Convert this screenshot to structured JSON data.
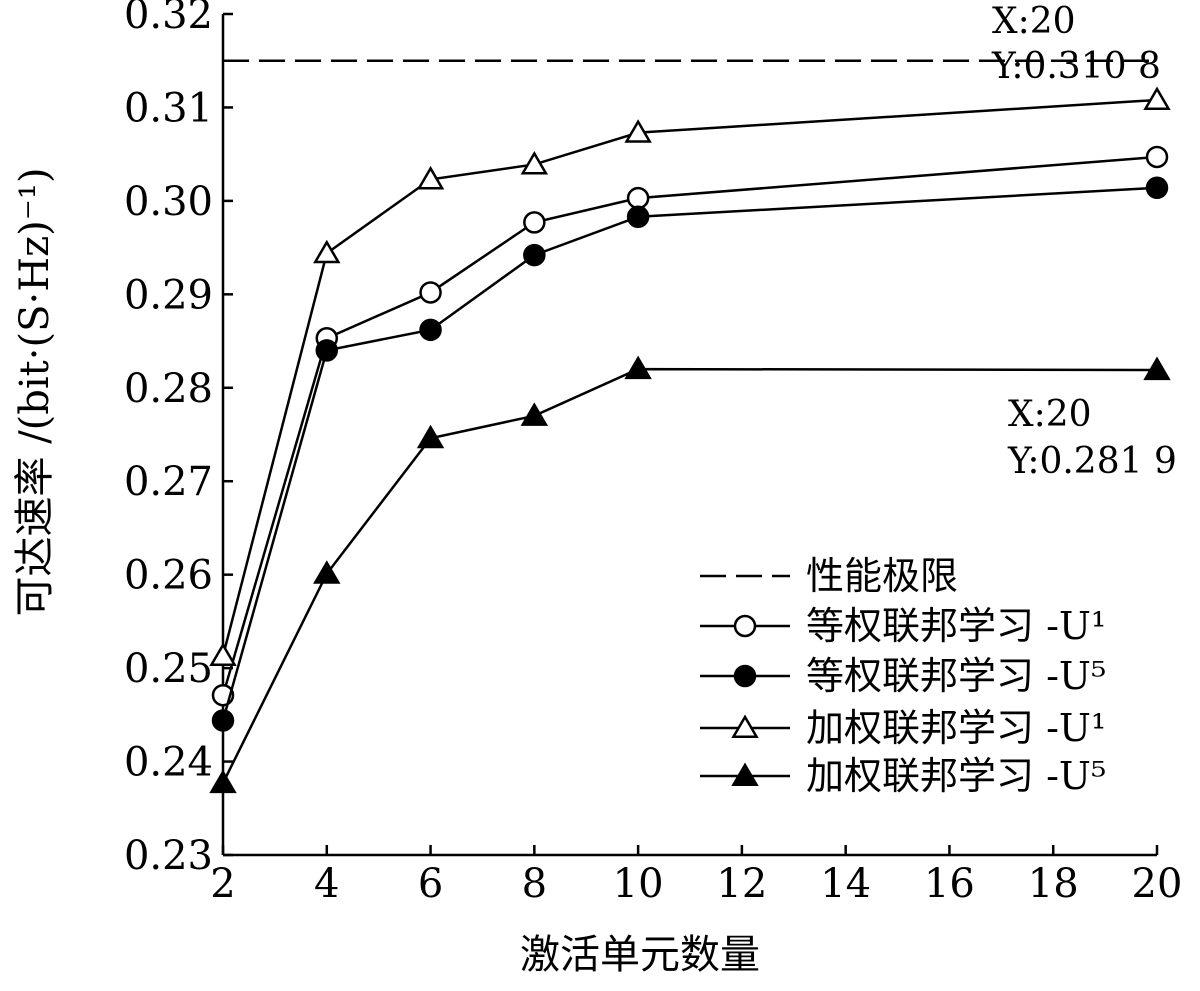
{
  "chart_data": {
    "type": "line",
    "xlabel": "激活单元数量",
    "ylabel": "可达速率 /(bit·(S·Hz)⁻¹)",
    "x_ticks": [
      "2",
      "4",
      "6",
      "8",
      "10",
      "12",
      "14",
      "16",
      "18",
      "20"
    ],
    "y_ticks": [
      "0.23",
      "0.24",
      "0.25",
      "0.26",
      "0.27",
      "0.28",
      "0.29",
      "0.30",
      "0.31",
      "0.32"
    ],
    "ylim": [
      0.23,
      0.32
    ],
    "grid": false,
    "legend_position": "bottom-right",
    "limit_line": {
      "name": "性能极限",
      "y": 0.315,
      "style": "dashed"
    },
    "series": [
      {
        "name": "等权联邦学习 -U¹",
        "marker": "circle-open",
        "x": [
          2,
          4,
          6,
          8,
          10,
          20
        ],
        "y": [
          0.2471,
          0.2853,
          0.2902,
          0.2977,
          0.3003,
          0.3047
        ]
      },
      {
        "name": "等权联邦学习 -U⁵",
        "marker": "circle-filled",
        "x": [
          2,
          4,
          6,
          8,
          10,
          20
        ],
        "y": [
          0.2444,
          0.284,
          0.2862,
          0.2942,
          0.2983,
          0.3014
        ]
      },
      {
        "name": "加权联邦学习 -U¹",
        "marker": "triangle-open",
        "x": [
          2,
          4,
          6,
          8,
          10,
          20
        ],
        "y": [
          0.2513,
          0.2944,
          0.3023,
          0.3039,
          0.3073,
          0.3108
        ]
      },
      {
        "name": "加权联邦学习 -U⁵",
        "marker": "triangle-filled",
        "x": [
          2,
          4,
          6,
          8,
          10,
          20
        ],
        "y": [
          0.2377,
          0.2601,
          0.2746,
          0.277,
          0.282,
          0.2819
        ]
      }
    ],
    "annotations": [
      {
        "x_text": "X:20",
        "y_text": "Y:0.310 8"
      },
      {
        "x_text": "X:20",
        "y_text": "Y:0.281 9"
      }
    ]
  }
}
